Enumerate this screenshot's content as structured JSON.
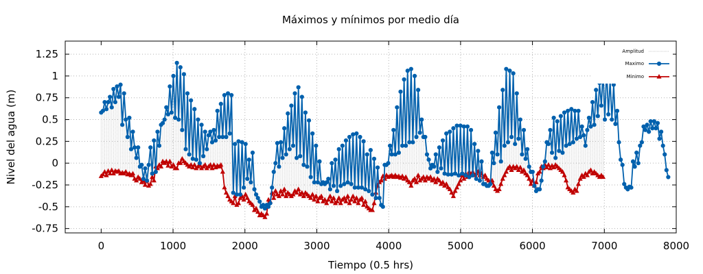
{
  "chart_data": {
    "type": "line",
    "title": "Máximos y mínimos por medio día",
    "xlabel": "Tiempo (0.5 hrs)",
    "ylabel": "Nivel del agua (m)",
    "xlim": [
      -500,
      8000
    ],
    "ylim": [
      -0.8,
      1.4
    ],
    "xticks": [
      0,
      1000,
      2000,
      3000,
      4000,
      5000,
      6000,
      7000,
      8000
    ],
    "yticks": [
      -0.75,
      -0.5,
      -0.25,
      0,
      0.25,
      0.5,
      0.75,
      1,
      1.25
    ],
    "xtick_labels": [
      "0",
      "1000",
      "2000",
      "3000",
      "4000",
      "5000",
      "6000",
      "7000",
      "8000"
    ],
    "ytick_labels": [
      "-0.75",
      "-0.5",
      "-0.25",
      "0",
      "0.25",
      "0.5",
      "0.75",
      "1",
      "1.25"
    ],
    "grid": true,
    "legend_position": "top-right",
    "colors": {
      "max": "#0060ad",
      "min": "#c00000",
      "amplitude": "#c8c8c8"
    },
    "x_step": 24.5,
    "series": [
      {
        "name": "Maximo",
        "marker": "circle",
        "values": [
          0.58,
          0.6,
          0.7,
          0.62,
          0.7,
          0.76,
          0.64,
          0.85,
          0.7,
          0.88,
          0.76,
          0.9,
          0.44,
          0.8,
          0.5,
          0.3,
          0.52,
          0.16,
          0.36,
          0.18,
          0.06,
          0.18,
          -0.04,
          -0.02,
          -0.18,
          -0.06,
          -0.2,
          -0.02,
          0.18,
          -0.12,
          0.26,
          -0.1,
          0.36,
          0.2,
          0.44,
          0.46,
          0.5,
          0.64,
          0.56,
          0.88,
          0.58,
          1.0,
          0.52,
          1.15,
          0.5,
          1.1,
          0.38,
          1.02,
          0.16,
          0.8,
          0.1,
          0.72,
          0.05,
          0.62,
          0.04,
          0.5,
          0.0,
          0.44,
          0.08,
          0.36,
          0.16,
          0.32,
          0.36,
          0.24,
          0.38,
          0.26,
          0.6,
          0.3,
          0.68,
          0.3,
          0.78,
          0.3,
          0.8,
          0.34,
          0.78,
          -0.34,
          0.22,
          -0.36,
          0.25,
          -0.36,
          0.24,
          -0.28,
          0.22,
          -0.18,
          0.04,
          -0.22,
          0.12,
          -0.3,
          -0.36,
          -0.4,
          -0.44,
          -0.5,
          -0.48,
          -0.52,
          -0.48,
          -0.5,
          -0.46,
          -0.28,
          -0.1,
          0.0,
          0.23,
          -0.04,
          0.24,
          0.06,
          0.4,
          0.1,
          0.57,
          0.16,
          0.66,
          0.2,
          0.8,
          0.06,
          0.87,
          0.08,
          0.76,
          -0.02,
          0.58,
          -0.04,
          0.49,
          -0.16,
          0.34,
          -0.22,
          0.2,
          -0.22,
          0.02,
          -0.24,
          -0.22,
          -0.24,
          -0.22,
          -0.18,
          -0.3,
          0.0,
          -0.26,
          0.04,
          -0.32,
          0.16,
          -0.26,
          0.2,
          -0.24,
          0.26,
          -0.22,
          0.3,
          -0.24,
          0.33,
          -0.28,
          0.34,
          -0.28,
          0.3,
          -0.28,
          0.25,
          -0.3,
          0.1,
          -0.32,
          0.15,
          -0.36,
          0.05,
          -0.4,
          -0.05,
          -0.4,
          -0.48,
          -0.5,
          -0.02,
          -0.02,
          0.0,
          0.2,
          0.1,
          0.38,
          0.1,
          0.64,
          0.12,
          0.82,
          0.2,
          0.96,
          0.2,
          1.06,
          0.24,
          1.08,
          0.24,
          1.0,
          0.3,
          0.84,
          0.35,
          0.5,
          0.3,
          0.3,
          0.1,
          0.04,
          -0.06,
          -0.02,
          -0.04,
          0.1,
          -0.1,
          0.18,
          -0.06,
          0.26,
          -0.12,
          0.34,
          -0.13,
          0.36,
          -0.13,
          0.4,
          -0.12,
          0.43,
          -0.14,
          0.43,
          -0.12,
          0.42,
          -0.14,
          0.42,
          -0.16,
          0.38,
          -0.14,
          0.22,
          -0.18,
          0.14,
          -0.2,
          0.02,
          -0.24,
          -0.24,
          -0.26,
          -0.26,
          -0.24,
          0.12,
          0.0,
          0.35,
          0.1,
          0.64,
          0.02,
          0.84,
          0.2,
          1.08,
          0.24,
          1.06,
          0.3,
          1.03,
          0.22,
          0.8,
          0.28,
          0.5,
          0.1,
          0.38,
          0.05,
          0.16,
          -0.04,
          -0.1,
          -0.1,
          -0.26,
          -0.32,
          -0.3,
          -0.3,
          -0.2,
          -0.04,
          0.02,
          0.24,
          0.22,
          0.38,
          0.12,
          0.52,
          0.06,
          0.48,
          0.14,
          0.54,
          0.12,
          0.58,
          0.2,
          0.6,
          0.22,
          0.62,
          0.24,
          0.6,
          0.28,
          0.6,
          0.3,
          0.42,
          0.32,
          0.2,
          0.38,
          0.52,
          0.42,
          0.7,
          0.44,
          0.84,
          0.54,
          0.92,
          0.66,
          1.06,
          0.5,
          1.08,
          0.56,
          0.95,
          0.5,
          0.9,
          0.45,
          0.6,
          0.24,
          0.04,
          -0.02,
          -0.24,
          -0.28,
          -0.3,
          -0.27,
          -0.28,
          0.02,
          -0.04,
          0.12,
          0.0,
          0.2,
          0.24,
          0.42,
          0.38,
          0.44,
          0.36,
          0.48,
          0.4,
          0.48,
          0.4,
          0.46,
          0.28,
          0.36,
          0.2,
          0.1,
          -0.08,
          -0.16
        ]
      },
      {
        "name": "Minimo",
        "marker": "triangle",
        "values": [
          -0.15,
          -0.13,
          -0.1,
          -0.14,
          -0.09,
          -0.12,
          -0.08,
          -0.12,
          -0.09,
          -0.1,
          -0.09,
          -0.12,
          -0.11,
          -0.12,
          -0.1,
          -0.13,
          -0.12,
          -0.14,
          -0.12,
          -0.18,
          -0.2,
          -0.16,
          -0.18,
          -0.22,
          -0.2,
          -0.25,
          -0.2,
          -0.26,
          -0.24,
          -0.16,
          -0.2,
          -0.04,
          -0.06,
          -0.02,
          -0.04,
          0.02,
          0.0,
          0.02,
          -0.03,
          0.02,
          -0.04,
          -0.02,
          -0.06,
          -0.06,
          0.0,
          0.0,
          0.05,
          0.02,
          0.0,
          -0.02,
          -0.04,
          -0.02,
          -0.05,
          -0.02,
          -0.06,
          -0.04,
          -0.02,
          -0.06,
          -0.04,
          -0.02,
          -0.06,
          -0.04,
          -0.02,
          -0.06,
          -0.02,
          -0.05,
          -0.03,
          -0.04,
          -0.02,
          -0.1,
          -0.28,
          -0.34,
          -0.38,
          -0.42,
          -0.44,
          -0.46,
          -0.38,
          -0.48,
          -0.46,
          -0.4,
          -0.38,
          -0.42,
          -0.36,
          -0.4,
          -0.44,
          -0.46,
          -0.48,
          -0.54,
          -0.52,
          -0.56,
          -0.6,
          -0.58,
          -0.6,
          -0.62,
          -0.58,
          -0.42,
          -0.44,
          -0.34,
          -0.4,
          -0.32,
          -0.36,
          -0.38,
          -0.32,
          -0.36,
          -0.3,
          -0.38,
          -0.34,
          -0.36,
          -0.38,
          -0.36,
          -0.32,
          -0.34,
          -0.3,
          -0.36,
          -0.34,
          -0.38,
          -0.34,
          -0.36,
          -0.38,
          -0.4,
          -0.36,
          -0.42,
          -0.38,
          -0.44,
          -0.4,
          -0.38,
          -0.44,
          -0.42,
          -0.46,
          -0.42,
          -0.38,
          -0.44,
          -0.4,
          -0.46,
          -0.44,
          -0.4,
          -0.46,
          -0.42,
          -0.4,
          -0.44,
          -0.38,
          -0.46,
          -0.42,
          -0.38,
          -0.44,
          -0.4,
          -0.46,
          -0.42,
          -0.4,
          -0.48,
          -0.44,
          -0.5,
          -0.52,
          -0.54,
          -0.54,
          -0.46,
          -0.34,
          -0.26,
          -0.22,
          -0.2,
          -0.15,
          -0.18,
          -0.14,
          -0.16,
          -0.15,
          -0.14,
          -0.16,
          -0.14,
          -0.16,
          -0.15,
          -0.17,
          -0.15,
          -0.18,
          -0.16,
          -0.2,
          -0.22,
          -0.26,
          -0.2,
          -0.18,
          -0.22,
          -0.14,
          -0.2,
          -0.18,
          -0.16,
          -0.2,
          -0.16,
          -0.18,
          -0.16,
          -0.2,
          -0.18,
          -0.22,
          -0.18,
          -0.2,
          -0.24,
          -0.22,
          -0.26,
          -0.24,
          -0.28,
          -0.3,
          -0.34,
          -0.38,
          -0.32,
          -0.28,
          -0.24,
          -0.2,
          -0.14,
          -0.18,
          -0.12,
          -0.16,
          -0.1,
          -0.14,
          -0.1,
          -0.14,
          -0.12,
          -0.1,
          -0.14,
          -0.12,
          -0.16,
          -0.14,
          -0.18,
          -0.2,
          -0.22,
          -0.2,
          -0.26,
          -0.3,
          -0.32,
          -0.3,
          -0.24,
          -0.18,
          -0.14,
          -0.1,
          -0.06,
          -0.04,
          -0.08,
          -0.04,
          -0.06,
          -0.04,
          -0.08,
          -0.05,
          -0.1,
          -0.08,
          -0.12,
          -0.14,
          -0.18,
          -0.24,
          -0.2,
          -0.26,
          -0.22,
          -0.12,
          -0.1,
          -0.04,
          -0.06,
          -0.02,
          -0.05,
          -0.02,
          -0.06,
          -0.03,
          -0.05,
          -0.02,
          -0.04,
          -0.06,
          -0.08,
          -0.1,
          -0.14,
          -0.2,
          -0.28,
          -0.3,
          -0.32,
          -0.34,
          -0.3,
          -0.32,
          -0.24,
          -0.18,
          -0.14,
          -0.16,
          -0.12,
          -0.14,
          -0.1,
          -0.08,
          -0.12,
          -0.1,
          -0.12,
          -0.14,
          -0.16,
          -0.14,
          -0.16
        ]
      },
      {
        "name": "Amplitud",
        "marker": "none",
        "values": []
      }
    ]
  }
}
